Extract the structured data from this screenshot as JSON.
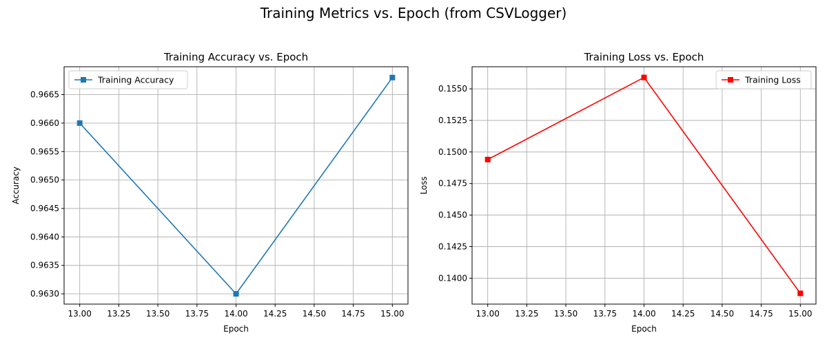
{
  "figure": {
    "title": "Training Metrics vs. Epoch (from CSVLogger)"
  },
  "chart_data": [
    {
      "type": "line",
      "title": "Training Accuracy vs. Epoch",
      "xlabel": "Epoch",
      "ylabel": "Accuracy",
      "x": [
        13.0,
        14.0,
        15.0
      ],
      "series": [
        {
          "name": "Training Accuracy",
          "values": [
            0.966,
            0.963,
            0.9668
          ],
          "color": "#1f77b4",
          "marker": "square"
        }
      ],
      "xlim": [
        12.9,
        15.1
      ],
      "ylim": [
        0.96282,
        0.96699
      ],
      "xticks": [
        "13.00",
        "13.25",
        "13.50",
        "13.75",
        "14.00",
        "14.25",
        "14.50",
        "14.75",
        "15.00"
      ],
      "yticks": [
        "0.9630",
        "0.9635",
        "0.9640",
        "0.9645",
        "0.9650",
        "0.9655",
        "0.9660",
        "0.9665"
      ],
      "grid": true,
      "legend_position": "upper left"
    },
    {
      "type": "line",
      "title": "Training Loss vs. Epoch",
      "xlabel": "Epoch",
      "ylabel": "Loss",
      "x": [
        13.0,
        14.0,
        15.0
      ],
      "series": [
        {
          "name": "Training Loss",
          "values": [
            0.1494,
            0.1559,
            0.1388
          ],
          "color": "#ff0000",
          "marker": "square"
        }
      ],
      "xlim": [
        12.9,
        15.1
      ],
      "ylim": [
        0.13795,
        0.15675
      ],
      "xticks": [
        "13.00",
        "13.25",
        "13.50",
        "13.75",
        "14.00",
        "14.25",
        "14.50",
        "14.75",
        "15.00"
      ],
      "yticks": [
        "0.1400",
        "0.1425",
        "0.1450",
        "0.1475",
        "0.1500",
        "0.1525",
        "0.1550"
      ],
      "grid": true,
      "legend_position": "upper right"
    }
  ]
}
